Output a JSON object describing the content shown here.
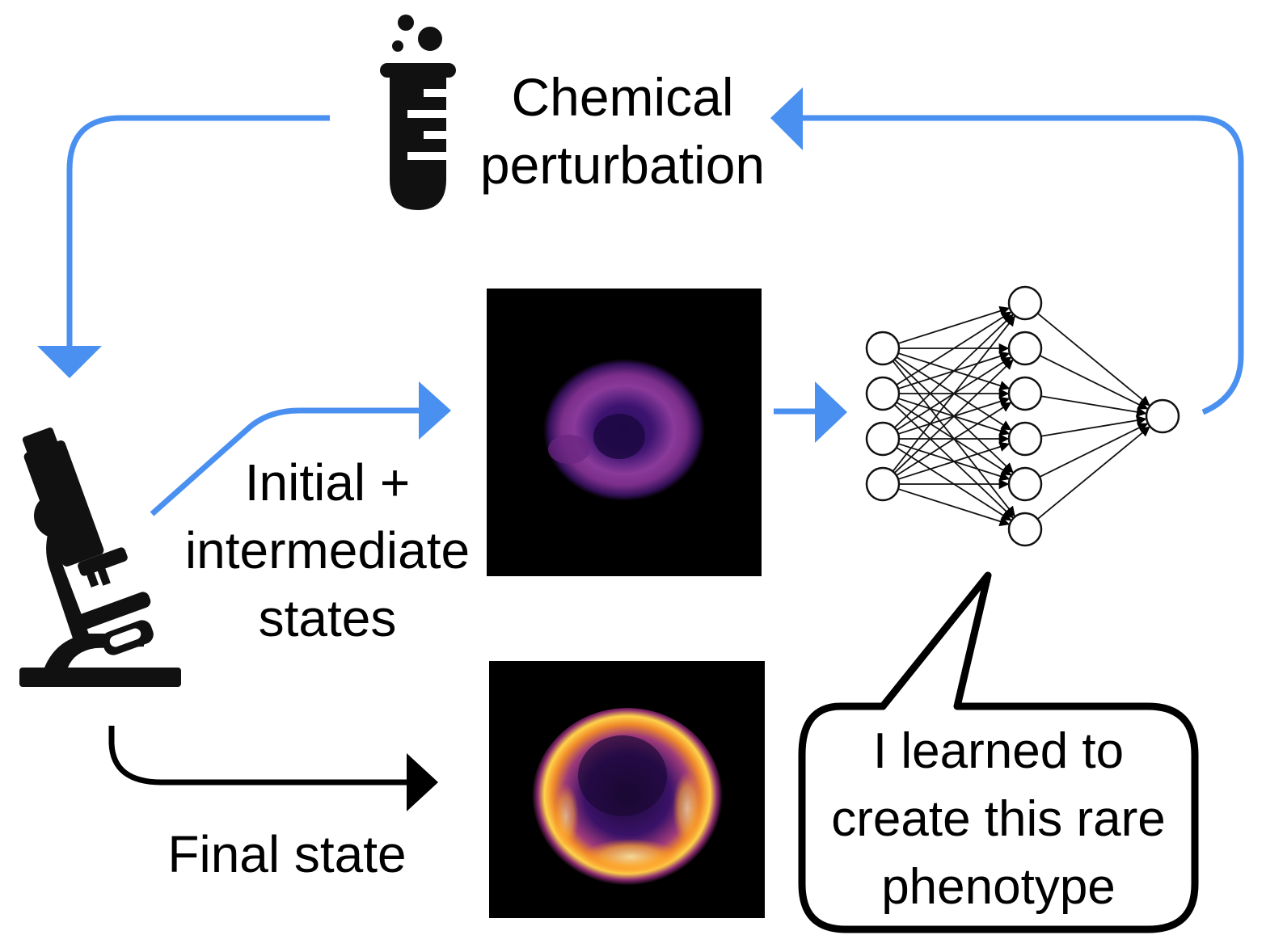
{
  "labels": {
    "chemical_perturbation": [
      "Chemical",
      "perturbation"
    ],
    "initial_states": [
      "Initial +",
      "intermediate",
      "states"
    ],
    "final_state": "Final state",
    "speech_bubble": [
      "I learned to",
      "create this rare",
      "phenotype"
    ]
  },
  "icons": {
    "test_tube": "test-tube-icon",
    "microscope": "microscope-icon"
  },
  "colors": {
    "arrow_blue": "#4a90f0",
    "arrow_black": "#000000",
    "cell_background": "#000000"
  },
  "neural_network": {
    "layers": [
      4,
      6,
      1
    ]
  }
}
